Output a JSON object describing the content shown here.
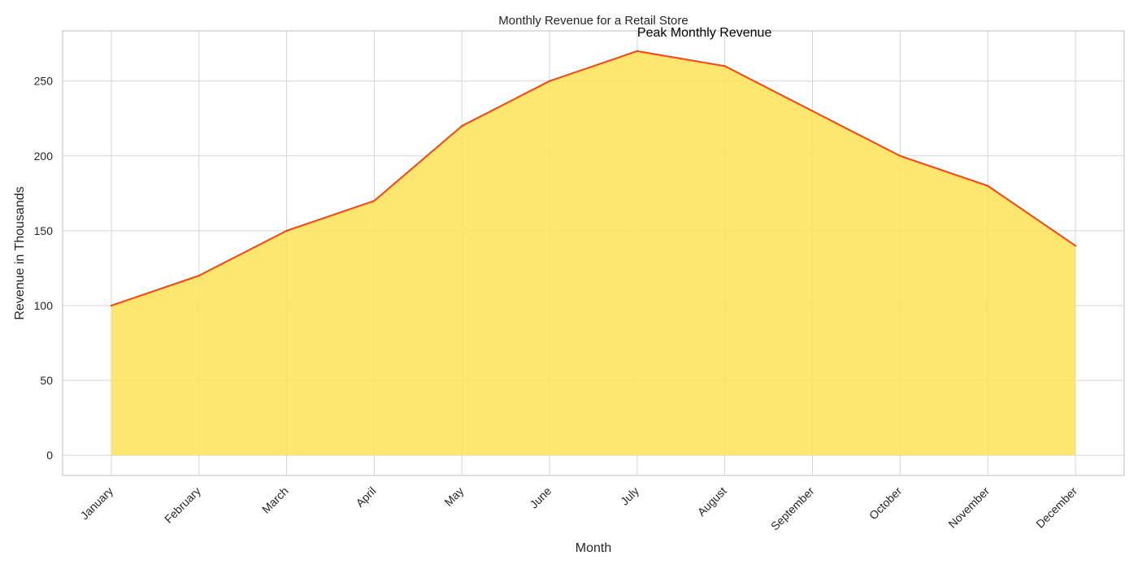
{
  "chart_data": {
    "type": "area",
    "title": "Monthly Revenue for a Retail Store",
    "xlabel": "Month",
    "ylabel": "Revenue in Thousands",
    "categories": [
      "January",
      "February",
      "March",
      "April",
      "May",
      "June",
      "July",
      "August",
      "September",
      "October",
      "November",
      "December"
    ],
    "values": [
      100,
      120,
      150,
      170,
      220,
      250,
      270,
      260,
      230,
      200,
      180,
      140
    ],
    "ylim": [
      -13.5,
      283.5
    ],
    "yticks": [
      0,
      50,
      100,
      150,
      200,
      250
    ],
    "grid": true,
    "annotation": {
      "text": "Peak Monthly Revenue",
      "x": "July",
      "y": 270
    },
    "colors": {
      "fill": "#fde461",
      "line": "#ff4500",
      "grid": "#d5d5d5",
      "axis": "#cccccc",
      "text": "#262626",
      "annotation": "#000000"
    }
  }
}
